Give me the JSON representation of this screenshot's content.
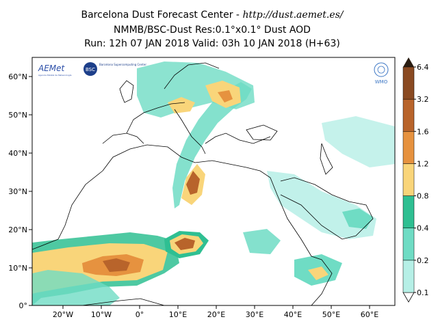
{
  "header": {
    "line1_prefix": "Barcelona Dust Forecast Center - ",
    "line1_url": "http://dust.aemet.es/",
    "line2": "NMMB/BSC-Dust   Res:0.1°x0.1°   Dust AOD",
    "line3": "Run: 12h 07 JAN 2018   Valid: 03h 10 JAN 2018 (H+63)"
  },
  "logos": {
    "aemet_text": "AEMet",
    "aemet_sub": "Agencia Estatal de Meteorología",
    "bsc_text": "BSC",
    "bsc_sub": "Barcelona Supercomputing Center",
    "wmo_text": "WMO"
  },
  "axes": {
    "lat_labels": [
      "60°N",
      "50°N",
      "40°N",
      "30°N",
      "20°N",
      "10°N",
      "0°"
    ],
    "lon_labels": [
      "20°W",
      "10°W",
      "0°",
      "10°E",
      "20°E",
      "30°E",
      "40°E",
      "50°E",
      "60°E"
    ]
  },
  "colorbar": {
    "levels": [
      "0.1",
      "0.2",
      "0.4",
      "0.8",
      "1.2",
      "1.6",
      "3.2",
      "6.4"
    ],
    "colors": [
      "#b6efe6",
      "#6fdcc4",
      "#2fbf92",
      "#f9d57a",
      "#e6923f",
      "#b8642b",
      "#8a4a22",
      "#55341c",
      "#2a1d12"
    ]
  }
}
